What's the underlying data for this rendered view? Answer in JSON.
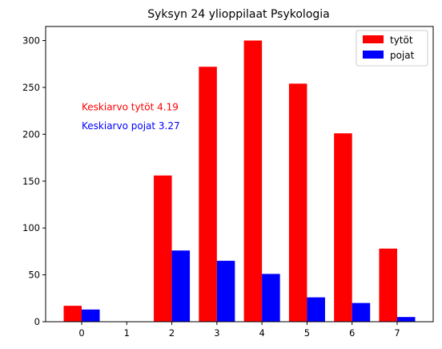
{
  "chart_data": {
    "type": "bar",
    "title": "Syksyn 24 ylioppilaat Psykologia",
    "xlabel": "",
    "ylabel": "",
    "categories": [
      0,
      1,
      2,
      3,
      4,
      5,
      6,
      7
    ],
    "series": [
      {
        "name": "tytöt",
        "color": "#ff0000",
        "values": [
          17,
          0,
          156,
          272,
          300,
          254,
          201,
          78
        ]
      },
      {
        "name": "pojat",
        "color": "#0000ff",
        "values": [
          13,
          0,
          76,
          65,
          51,
          26,
          20,
          5
        ]
      }
    ],
    "xlim": [
      -0.8,
      7.8
    ],
    "ylim": [
      0,
      315
    ],
    "yticks": [
      0,
      50,
      100,
      150,
      200,
      250,
      300
    ],
    "xticks": [
      0,
      1,
      2,
      3,
      4,
      5,
      6,
      7
    ],
    "grid": false,
    "legend": {
      "placement": "top-right"
    },
    "annotations": [
      {
        "text": "Keskiarvo tytöt 4.19",
        "color": "#ff0000",
        "x": 0,
        "y": 229
      },
      {
        "text": "Keskiarvo pojat 3.27",
        "color": "#0000ff",
        "x": 0,
        "y": 209
      }
    ]
  }
}
